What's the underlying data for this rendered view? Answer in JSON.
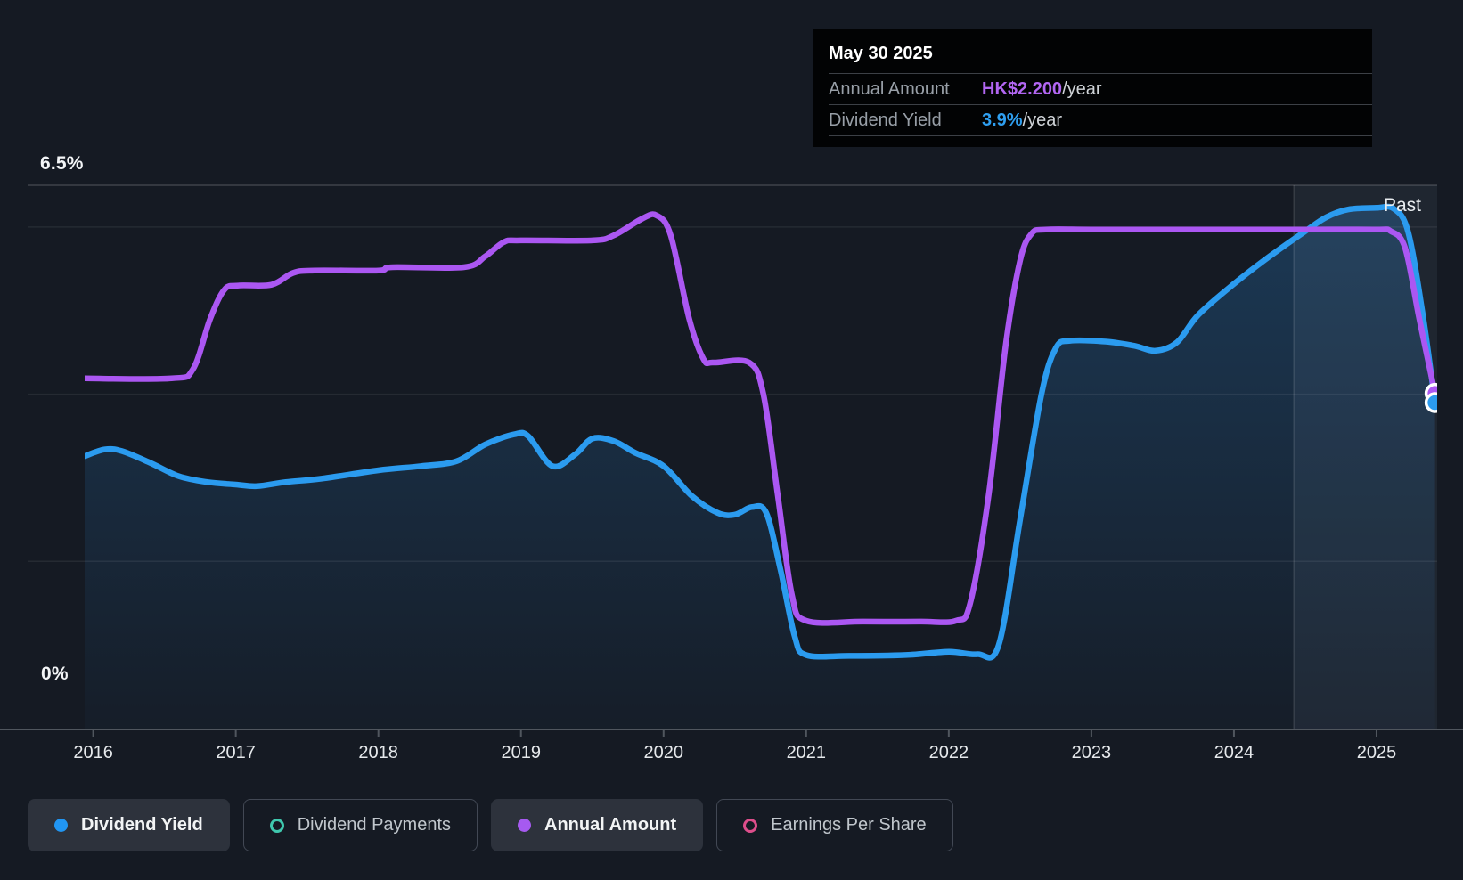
{
  "header": {
    "past_label": "Past"
  },
  "tooltip": {
    "date": "May 30 2025",
    "rows": [
      {
        "label": "Annual Amount",
        "value": "HK$2.200",
        "suffix": "/year",
        "color": "#b266f2"
      },
      {
        "label": "Dividend Yield",
        "value": "3.9%",
        "suffix": "/year",
        "color": "#2f9ff0"
      }
    ]
  },
  "y_axis": {
    "top_label": "6.5%",
    "bottom_label": "0%"
  },
  "legend": [
    {
      "label": "Dividend Yield",
      "marker": "filled",
      "color": "#2196f3",
      "active": true
    },
    {
      "label": "Dividend Payments",
      "marker": "ring",
      "color": "#3fc8ae",
      "active": false
    },
    {
      "label": "Annual Amount",
      "marker": "filled",
      "color": "#a65af0",
      "active": true
    },
    {
      "label": "Earnings Per Share",
      "marker": "ring",
      "color": "#dd4e8b",
      "active": false
    }
  ],
  "colors": {
    "background": "#151a23",
    "blue_line": "#2b9bef",
    "purple_line": "#ab57f2",
    "area_fill": "rgb(45,140,220)",
    "gridline": "rgba(255,255,255,0.07)",
    "gridline_top": "rgba(255,255,255,0.18)",
    "axis_line": "#50565e",
    "past_band": "rgba(170,195,225,0.07)",
    "past_edge": "rgba(255,255,255,0.12)",
    "marker_ring": "#ffffff"
  },
  "chart_data": {
    "type": "line",
    "title": "Dividend history",
    "x_ticks": [
      "2016",
      "2017",
      "2018",
      "2019",
      "2020",
      "2021",
      "2022",
      "2023",
      "2024",
      "2025"
    ],
    "x_tick_years": [
      2016,
      2017,
      2018,
      2019,
      2020,
      2021,
      2022,
      2023,
      2024,
      2025
    ],
    "x_range": [
      2015.94,
      2025.425
    ],
    "y_range": [
      0,
      6.5
    ],
    "y_gridlines": [
      6.5,
      6,
      4,
      2
    ],
    "past_region_start": 2024.42,
    "legend_position": "bottom",
    "series": [
      {
        "name": "Dividend Yield",
        "unit": "%",
        "color": "#2b9bef",
        "area": true,
        "end_value_label": "3.9%/year",
        "points": [
          [
            2015.94,
            3.26
          ],
          [
            2016.08,
            3.34
          ],
          [
            2016.2,
            3.32
          ],
          [
            2016.4,
            3.18
          ],
          [
            2016.6,
            3.02
          ],
          [
            2016.8,
            2.95
          ],
          [
            2017.0,
            2.92
          ],
          [
            2017.15,
            2.9
          ],
          [
            2017.35,
            2.95
          ],
          [
            2017.6,
            2.99
          ],
          [
            2018.0,
            3.09
          ],
          [
            2018.3,
            3.14
          ],
          [
            2018.55,
            3.2
          ],
          [
            2018.75,
            3.4
          ],
          [
            2018.95,
            3.52
          ],
          [
            2019.05,
            3.5
          ],
          [
            2019.22,
            3.14
          ],
          [
            2019.38,
            3.28
          ],
          [
            2019.5,
            3.47
          ],
          [
            2019.65,
            3.44
          ],
          [
            2019.8,
            3.3
          ],
          [
            2020.0,
            3.14
          ],
          [
            2020.2,
            2.78
          ],
          [
            2020.38,
            2.58
          ],
          [
            2020.5,
            2.56
          ],
          [
            2020.62,
            2.65
          ],
          [
            2020.72,
            2.58
          ],
          [
            2020.82,
            1.9
          ],
          [
            2020.92,
            1.1
          ],
          [
            2021.0,
            0.88
          ],
          [
            2021.3,
            0.87
          ],
          [
            2021.7,
            0.88
          ],
          [
            2022.0,
            0.92
          ],
          [
            2022.2,
            0.89
          ],
          [
            2022.35,
            1.0
          ],
          [
            2022.5,
            2.5
          ],
          [
            2022.65,
            4.0
          ],
          [
            2022.75,
            4.55
          ],
          [
            2022.85,
            4.64
          ],
          [
            2023.1,
            4.63
          ],
          [
            2023.3,
            4.58
          ],
          [
            2023.45,
            4.52
          ],
          [
            2023.6,
            4.62
          ],
          [
            2023.75,
            4.95
          ],
          [
            2024.0,
            5.32
          ],
          [
            2024.25,
            5.65
          ],
          [
            2024.5,
            5.95
          ],
          [
            2024.65,
            6.12
          ],
          [
            2024.8,
            6.21
          ],
          [
            2025.0,
            6.23
          ],
          [
            2025.12,
            6.22
          ],
          [
            2025.22,
            5.95
          ],
          [
            2025.32,
            5.0
          ],
          [
            2025.41,
            3.9
          ]
        ]
      },
      {
        "name": "Annual Amount",
        "unit": "HK$/year (plotted on shared 0-6.5 scale)",
        "color": "#ab57f2",
        "area": false,
        "end_value_label": "HK$2.200/year",
        "points": [
          [
            2015.94,
            4.19
          ],
          [
            2016.55,
            4.19
          ],
          [
            2016.7,
            4.3
          ],
          [
            2016.82,
            4.9
          ],
          [
            2016.92,
            5.25
          ],
          [
            2017.02,
            5.3
          ],
          [
            2017.25,
            5.31
          ],
          [
            2017.4,
            5.45
          ],
          [
            2017.55,
            5.48
          ],
          [
            2018.0,
            5.48
          ],
          [
            2018.1,
            5.52
          ],
          [
            2018.6,
            5.52
          ],
          [
            2018.75,
            5.65
          ],
          [
            2018.88,
            5.82
          ],
          [
            2019.0,
            5.84
          ],
          [
            2019.5,
            5.84
          ],
          [
            2019.65,
            5.9
          ],
          [
            2019.85,
            6.1
          ],
          [
            2019.95,
            6.14
          ],
          [
            2020.05,
            5.9
          ],
          [
            2020.18,
            4.9
          ],
          [
            2020.28,
            4.42
          ],
          [
            2020.35,
            4.38
          ],
          [
            2020.6,
            4.38
          ],
          [
            2020.7,
            4.0
          ],
          [
            2020.8,
            2.8
          ],
          [
            2020.9,
            1.6
          ],
          [
            2021.0,
            1.29
          ],
          [
            2021.4,
            1.28
          ],
          [
            2021.8,
            1.28
          ],
          [
            2022.05,
            1.29
          ],
          [
            2022.15,
            1.5
          ],
          [
            2022.28,
            2.8
          ],
          [
            2022.4,
            4.6
          ],
          [
            2022.5,
            5.6
          ],
          [
            2022.58,
            5.92
          ],
          [
            2022.68,
            5.97
          ],
          [
            2023.0,
            5.97
          ],
          [
            2023.5,
            5.97
          ],
          [
            2024.0,
            5.97
          ],
          [
            2024.5,
            5.97
          ],
          [
            2025.0,
            5.97
          ],
          [
            2025.1,
            5.95
          ],
          [
            2025.2,
            5.75
          ],
          [
            2025.3,
            4.9
          ],
          [
            2025.41,
            4.01
          ]
        ]
      }
    ],
    "end_markers": [
      {
        "series": "Annual Amount",
        "x": 2025.41,
        "y": 4.01,
        "color": "#ab57f2"
      },
      {
        "series": "Dividend Yield",
        "x": 2025.41,
        "y": 3.9,
        "color": "#2b9bef"
      }
    ]
  }
}
